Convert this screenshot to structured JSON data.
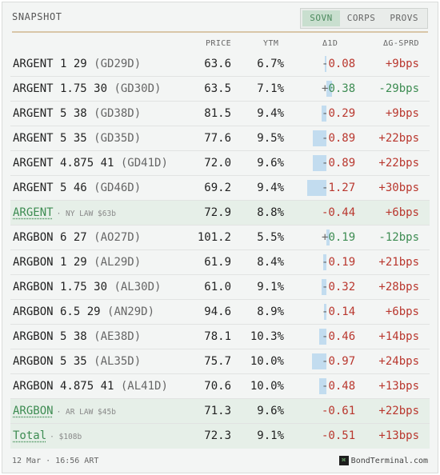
{
  "header": {
    "title": "SNAPSHOT",
    "tabs": [
      {
        "label": "SOVN",
        "active": true
      },
      {
        "label": "CORPS",
        "active": false
      },
      {
        "label": "PROVS",
        "active": false
      }
    ]
  },
  "columns": {
    "price": "PRICE",
    "ytm": "YTM",
    "d1": "Δ1D",
    "gsprd": "ΔG-SPRD"
  },
  "rows": [
    {
      "name": "ARGENT 1 29",
      "ticker": "(GD29D)",
      "price": "63.6",
      "ytm": "6.7%",
      "d1_sign": "-",
      "d1_val": "0.08",
      "d1": -0.08,
      "gsprd": "+9bps"
    },
    {
      "name": "ARGENT 1.75 30",
      "ticker": "(GD30D)",
      "price": "63.5",
      "ytm": "7.1%",
      "d1_sign": "+",
      "d1_val": "0.38",
      "d1": 0.38,
      "gsprd": "-29bps"
    },
    {
      "name": "ARGENT 5 38",
      "ticker": "(GD38D)",
      "price": "81.5",
      "ytm": "9.4%",
      "d1_sign": "-",
      "d1_val": "0.29",
      "d1": -0.29,
      "gsprd": "+9bps"
    },
    {
      "name": "ARGENT 5 35",
      "ticker": "(GD35D)",
      "price": "77.6",
      "ytm": "9.5%",
      "d1_sign": "-",
      "d1_val": "0.89",
      "d1": -0.89,
      "gsprd": "+22bps"
    },
    {
      "name": "ARGENT 4.875 41",
      "ticker": "(GD41D)",
      "price": "72.0",
      "ytm": "9.6%",
      "d1_sign": "-",
      "d1_val": "0.89",
      "d1": -0.89,
      "gsprd": "+22bps"
    },
    {
      "name": "ARGENT 5 46",
      "ticker": "(GD46D)",
      "price": "69.2",
      "ytm": "9.4%",
      "d1_sign": "-",
      "d1_val": "1.27",
      "d1": -1.27,
      "gsprd": "+30bps"
    },
    {
      "type": "subtotal",
      "name": "ARGENT",
      "note": "· NY LAW $63b",
      "price": "72.9",
      "ytm": "8.8%",
      "d1_text": "-0.44",
      "d1": -0.44,
      "gsprd": "+6bps"
    },
    {
      "name": "ARGBON 6 27",
      "ticker": "(AO27D)",
      "price": "101.2",
      "ytm": "5.5%",
      "d1_sign": "+",
      "d1_val": "0.19",
      "d1": 0.19,
      "gsprd": "-12bps"
    },
    {
      "name": "ARGBON 1 29",
      "ticker": "(AL29D)",
      "price": "61.9",
      "ytm": "8.4%",
      "d1_sign": "-",
      "d1_val": "0.19",
      "d1": -0.19,
      "gsprd": "+21bps"
    },
    {
      "name": "ARGBON 1.75 30",
      "ticker": "(AL30D)",
      "price": "61.0",
      "ytm": "9.1%",
      "d1_sign": "-",
      "d1_val": "0.32",
      "d1": -0.32,
      "gsprd": "+28bps"
    },
    {
      "name": "ARGBON 6.5 29",
      "ticker": "(AN29D)",
      "price": "94.6",
      "ytm": "8.9%",
      "d1_sign": "-",
      "d1_val": "0.14",
      "d1": -0.14,
      "gsprd": "+6bps"
    },
    {
      "name": "ARGBON 5 38",
      "ticker": "(AE38D)",
      "price": "78.1",
      "ytm": "10.3%",
      "d1_sign": "-",
      "d1_val": "0.46",
      "d1": -0.46,
      "gsprd": "+14bps"
    },
    {
      "name": "ARGBON 5 35",
      "ticker": "(AL35D)",
      "price": "75.7",
      "ytm": "10.0%",
      "d1_sign": "-",
      "d1_val": "0.97",
      "d1": -0.97,
      "gsprd": "+24bps"
    },
    {
      "name": "ARGBON 4.875 41",
      "ticker": "(AL41D)",
      "price": "70.6",
      "ytm": "10.0%",
      "d1_sign": "-",
      "d1_val": "0.48",
      "d1": -0.48,
      "gsprd": "+13bps"
    },
    {
      "type": "subtotal",
      "name": "ARGBON",
      "note": "· AR LAW $45b",
      "price": "71.3",
      "ytm": "9.6%",
      "d1_text": "-0.61",
      "d1": -0.61,
      "gsprd": "+22bps"
    },
    {
      "type": "total",
      "name": "Total",
      "note": "· $108b",
      "price": "72.3",
      "ytm": "9.1%",
      "d1_text": "-0.51",
      "d1": -0.51,
      "gsprd": "+13bps"
    }
  ],
  "footer": {
    "timestamp": "12 Mar · 16:56 ART",
    "brand": "BondTerminal.com",
    "logo_glyph": "⌘"
  },
  "colors": {
    "positive": "#3d8c52",
    "negative": "#b9372e",
    "bar": "#c2dcef",
    "subtotal_bg": "#e6efe8",
    "accent_rule": "#d8c6a8"
  }
}
